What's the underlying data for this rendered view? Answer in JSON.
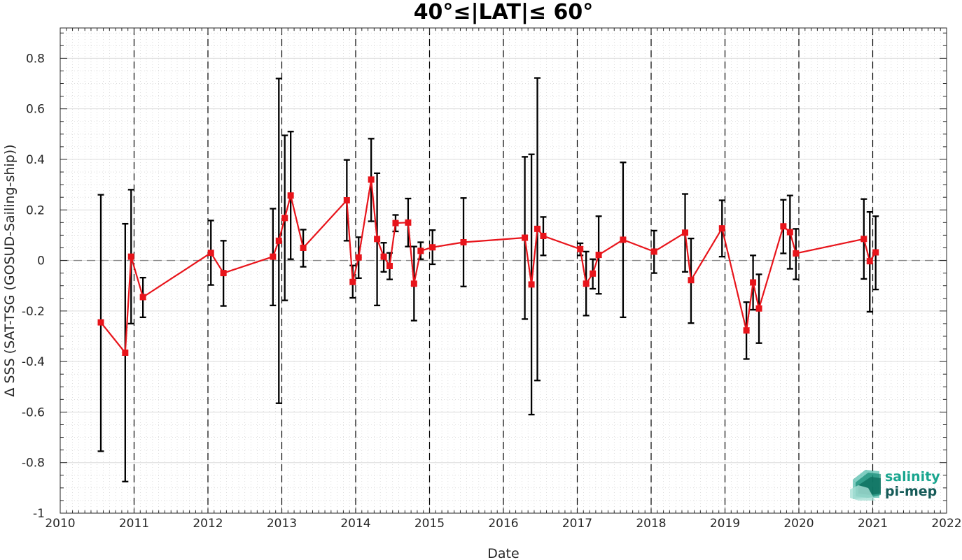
{
  "chart_data": {
    "type": "line",
    "title": "40°≤|LAT|≤ 60°",
    "xlabel": "Date",
    "ylabel": "Δ SSS (SAT-TSG (GOSUD-Sailing-ship))",
    "xlim": [
      2010,
      2022
    ],
    "ylim": [
      -1,
      0.92
    ],
    "x_ticks": [
      2010,
      2011,
      2012,
      2013,
      2014,
      2015,
      2016,
      2017,
      2018,
      2019,
      2020,
      2021,
      2022
    ],
    "x_tick_labels": [
      "2010",
      "2011",
      "2012",
      "2013",
      "2014",
      "2015",
      "2016",
      "2017",
      "2018",
      "2019",
      "2020",
      "2021",
      "2022"
    ],
    "y_ticks": [
      -1,
      -0.8,
      -0.6,
      -0.4,
      -0.2,
      0,
      0.2,
      0.4,
      0.6,
      0.8
    ],
    "y_tick_labels": [
      "-1",
      "-0.8",
      "-0.6",
      "-0.4",
      "-0.2",
      "0",
      "0.2",
      "0.4",
      "0.6",
      "0.8"
    ],
    "grid": true,
    "zero_line": 0,
    "year_boundaries": [
      2011,
      2012,
      2013,
      2014,
      2015,
      2016,
      2017,
      2018,
      2019,
      2020,
      2021
    ],
    "series": [
      {
        "color": "#e8141b",
        "errorbar_color": "#000000",
        "points": [
          {
            "x": 2010.55,
            "y": -0.245,
            "low": -0.755,
            "high": 0.26
          },
          {
            "x": 2010.88,
            "y": -0.365,
            "low": -0.875,
            "high": 0.145
          },
          {
            "x": 2010.96,
            "y": 0.015,
            "low": -0.25,
            "high": 0.28
          },
          {
            "x": 2011.12,
            "y": -0.145,
            "low": -0.225,
            "high": -0.068
          },
          {
            "x": 2012.04,
            "y": 0.03,
            "low": -0.097,
            "high": 0.158
          },
          {
            "x": 2012.21,
            "y": -0.05,
            "low": -0.18,
            "high": 0.078
          },
          {
            "x": 2012.88,
            "y": 0.015,
            "low": -0.178,
            "high": 0.205
          },
          {
            "x": 2012.96,
            "y": 0.078,
            "low": -0.565,
            "high": 0.72
          },
          {
            "x": 2013.04,
            "y": 0.168,
            "low": -0.158,
            "high": 0.495
          },
          {
            "x": 2013.12,
            "y": 0.257,
            "low": 0.005,
            "high": 0.51
          },
          {
            "x": 2013.29,
            "y": 0.05,
            "low": -0.025,
            "high": 0.122
          },
          {
            "x": 2013.88,
            "y": 0.238,
            "low": 0.078,
            "high": 0.398
          },
          {
            "x": 2013.96,
            "y": -0.085,
            "low": -0.148,
            "high": -0.02
          },
          {
            "x": 2014.04,
            "y": 0.012,
            "low": -0.07,
            "high": 0.092
          },
          {
            "x": 2014.21,
            "y": 0.32,
            "low": 0.155,
            "high": 0.482
          },
          {
            "x": 2014.29,
            "y": 0.085,
            "low": -0.178,
            "high": 0.345
          },
          {
            "x": 2014.38,
            "y": 0.015,
            "low": -0.045,
            "high": 0.07
          },
          {
            "x": 2014.46,
            "y": -0.022,
            "low": -0.075,
            "high": 0.03
          },
          {
            "x": 2014.54,
            "y": 0.148,
            "low": 0.115,
            "high": 0.18
          },
          {
            "x": 2014.71,
            "y": 0.15,
            "low": 0.055,
            "high": 0.245
          },
          {
            "x": 2014.79,
            "y": -0.092,
            "low": -0.238,
            "high": 0.055
          },
          {
            "x": 2014.88,
            "y": 0.038,
            "low": 0.005,
            "high": 0.072
          },
          {
            "x": 2015.04,
            "y": 0.052,
            "low": -0.015,
            "high": 0.12
          },
          {
            "x": 2015.46,
            "y": 0.072,
            "low": -0.103,
            "high": 0.247
          },
          {
            "x": 2016.29,
            "y": 0.09,
            "low": -0.232,
            "high": 0.41
          },
          {
            "x": 2016.38,
            "y": -0.095,
            "low": -0.61,
            "high": 0.42
          },
          {
            "x": 2016.46,
            "y": 0.125,
            "low": -0.475,
            "high": 0.722
          },
          {
            "x": 2016.54,
            "y": 0.097,
            "low": 0.02,
            "high": 0.172
          },
          {
            "x": 2017.04,
            "y": 0.045,
            "low": 0.02,
            "high": 0.068
          },
          {
            "x": 2017.12,
            "y": -0.092,
            "low": -0.218,
            "high": 0.035
          },
          {
            "x": 2017.21,
            "y": -0.052,
            "low": -0.112,
            "high": 0.005
          },
          {
            "x": 2017.29,
            "y": 0.022,
            "low": -0.132,
            "high": 0.175
          },
          {
            "x": 2017.62,
            "y": 0.082,
            "low": -0.225,
            "high": 0.388
          },
          {
            "x": 2018.04,
            "y": 0.035,
            "low": -0.05,
            "high": 0.118
          },
          {
            "x": 2018.46,
            "y": 0.11,
            "low": -0.045,
            "high": 0.263
          },
          {
            "x": 2018.54,
            "y": -0.078,
            "low": -0.248,
            "high": 0.087
          },
          {
            "x": 2018.96,
            "y": 0.127,
            "low": 0.015,
            "high": 0.238
          },
          {
            "x": 2019.29,
            "y": -0.277,
            "low": -0.39,
            "high": -0.165
          },
          {
            "x": 2019.38,
            "y": -0.087,
            "low": -0.195,
            "high": 0.02
          },
          {
            "x": 2019.46,
            "y": -0.19,
            "low": -0.327,
            "high": -0.055
          },
          {
            "x": 2019.79,
            "y": 0.135,
            "low": 0.028,
            "high": 0.24
          },
          {
            "x": 2019.88,
            "y": 0.112,
            "low": -0.033,
            "high": 0.257
          },
          {
            "x": 2019.96,
            "y": 0.028,
            "low": -0.075,
            "high": 0.125
          },
          {
            "x": 2020.88,
            "y": 0.085,
            "low": -0.073,
            "high": 0.243
          },
          {
            "x": 2020.96,
            "y": -0.003,
            "low": -0.203,
            "high": 0.192
          },
          {
            "x": 2021.04,
            "y": 0.032,
            "low": -0.115,
            "high": 0.175
          }
        ]
      }
    ]
  },
  "logo": {
    "line1": "salinity",
    "line2": "pi-mep",
    "color1": "#1aa68f",
    "color2": "#165b58"
  }
}
